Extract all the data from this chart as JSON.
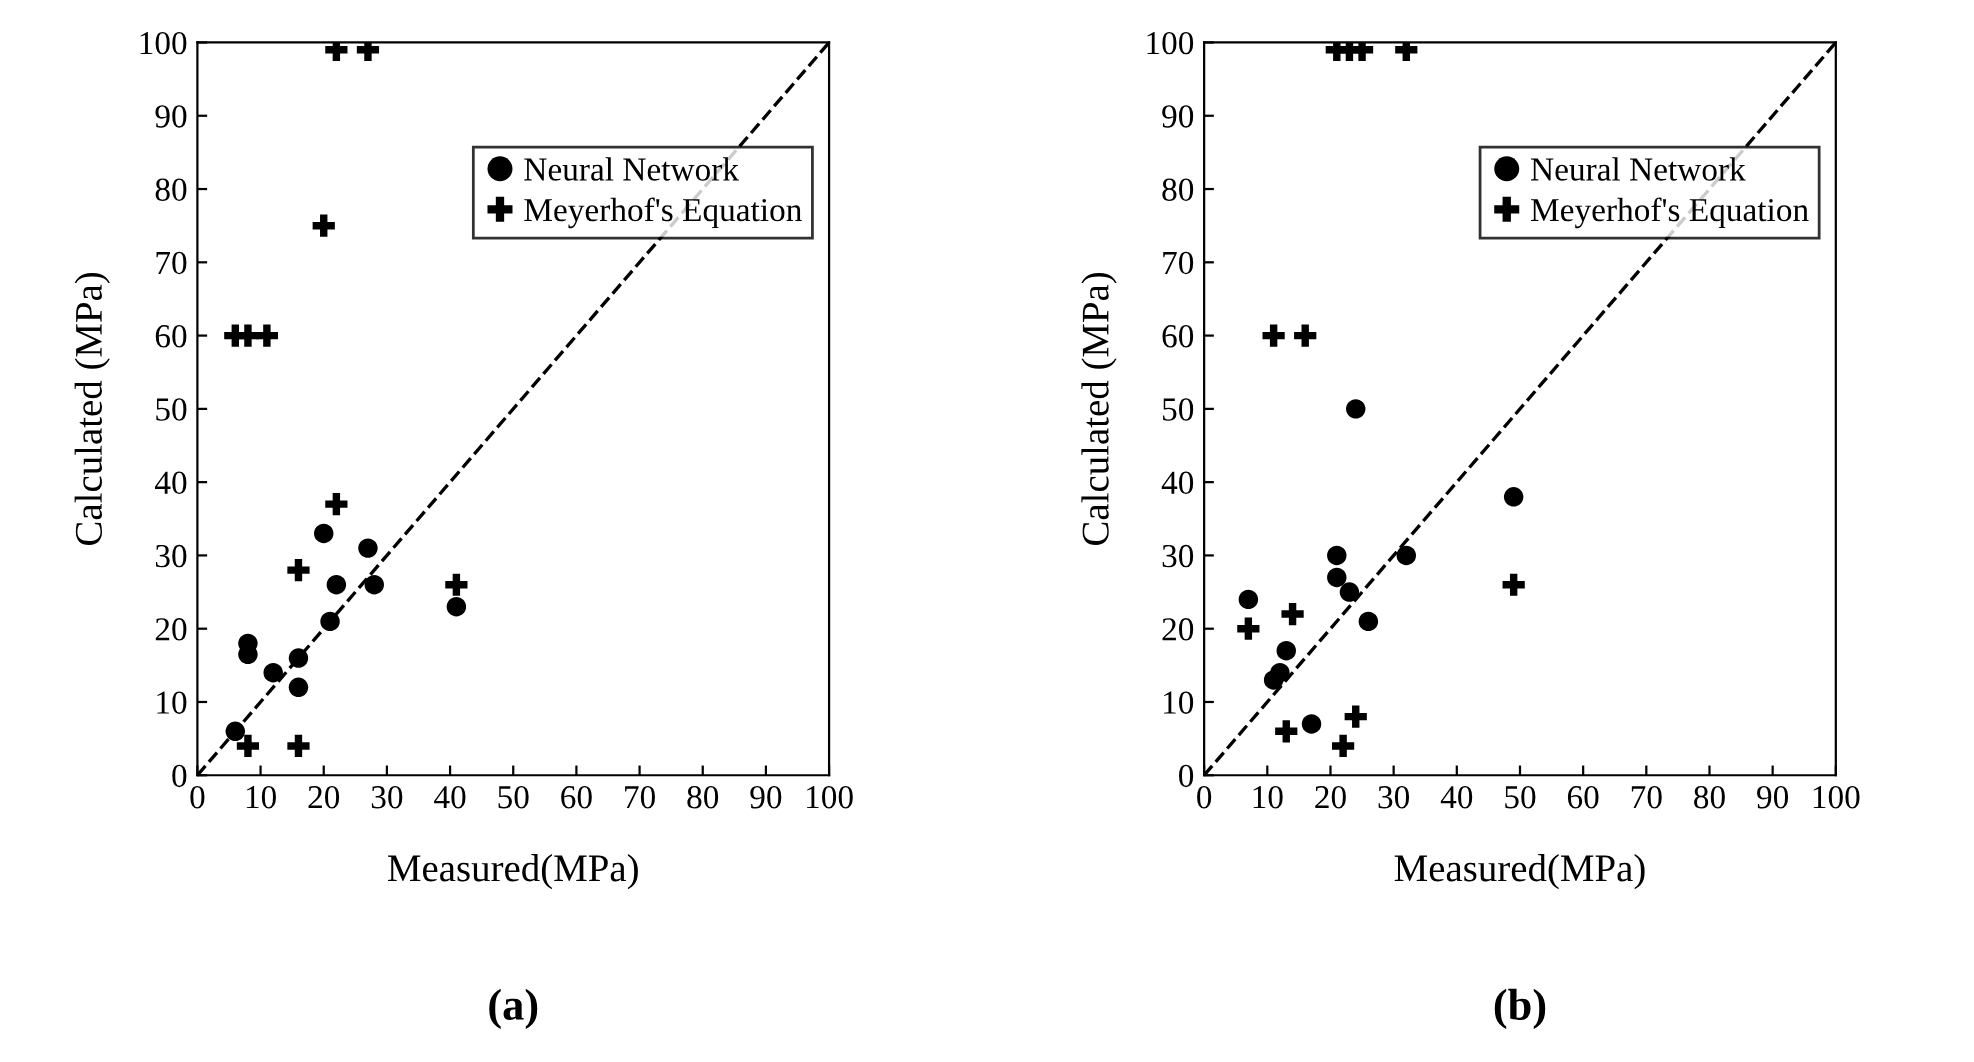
{
  "chart_data": [
    {
      "type": "scatter",
      "xlabel": "Measured(MPa)",
      "ylabel": "Calculated (MPa)",
      "xlim": [
        0,
        100
      ],
      "ylim": [
        0,
        100
      ],
      "xticks": [
        0,
        10,
        20,
        30,
        40,
        50,
        60,
        70,
        80,
        90,
        100
      ],
      "yticks": [
        0,
        10,
        20,
        30,
        40,
        50,
        60,
        70,
        80,
        90,
        100
      ],
      "legend": "top right",
      "grid": false,
      "annotations": [
        "(a)"
      ],
      "series": [
        {
          "name": "Neural Network",
          "color": "#000000",
          "marker": "circle",
          "x": [
            6,
            8,
            8,
            12,
            16,
            16,
            20,
            21,
            22,
            27,
            28,
            41
          ],
          "values": [
            6,
            18,
            16.5,
            14,
            16,
            12,
            33,
            21,
            26,
            31,
            26,
            23
          ]
        },
        {
          "name": "Meyerhof's Equation",
          "color": "#000000",
          "marker": "cross",
          "x": [
            6,
            8,
            11,
            20,
            22,
            27,
            22,
            16,
            41,
            8,
            16
          ],
          "values": [
            60,
            60,
            60,
            75,
            99,
            99,
            37,
            28,
            26,
            4,
            4
          ]
        },
        {
          "type": "line",
          "color": "#000000",
          "line_style": "dashed",
          "marker": "none",
          "x": [
            0,
            100
          ],
          "values": [
            0,
            100
          ]
        }
      ]
    },
    {
      "type": "scatter",
      "xlabel": "Measured(MPa)",
      "ylabel": "Calculated (MPa)",
      "xlim": [
        0,
        100
      ],
      "ylim": [
        0,
        100
      ],
      "xticks": [
        0,
        10,
        20,
        30,
        40,
        50,
        60,
        70,
        80,
        90,
        100
      ],
      "yticks": [
        0,
        10,
        20,
        30,
        40,
        50,
        60,
        70,
        80,
        90,
        100
      ],
      "legend": "top right",
      "grid": false,
      "annotations": [
        "(b)"
      ],
      "series": [
        {
          "name": "Neural Network",
          "color": "#000000",
          "marker": "circle",
          "x": [
            7,
            11,
            12,
            13,
            17,
            21,
            21,
            23,
            24,
            26,
            32,
            49
          ],
          "values": [
            24,
            13,
            14,
            17,
            7,
            30,
            27,
            25,
            50,
            21,
            30,
            38
          ]
        },
        {
          "name": "Meyerhof's Equation",
          "color": "#000000",
          "marker": "cross",
          "x": [
            7,
            11,
            16,
            14,
            13,
            22,
            24,
            49,
            21,
            23,
            25,
            32
          ],
          "values": [
            20,
            60,
            60,
            22,
            6,
            4,
            8,
            26,
            99,
            99,
            99,
            99
          ]
        },
        {
          "type": "line",
          "color": "#000000",
          "line_style": "dashed",
          "marker": "none",
          "x": [
            0,
            100
          ],
          "values": [
            0,
            100
          ]
        }
      ]
    }
  ]
}
